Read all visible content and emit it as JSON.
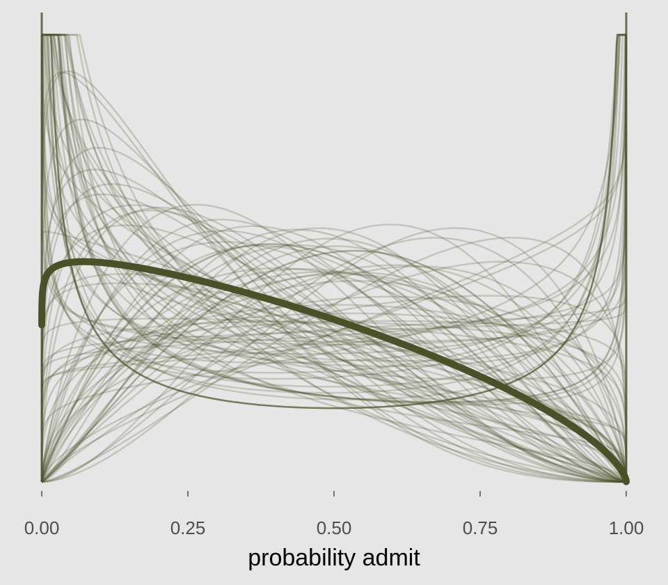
{
  "chart_data": {
    "type": "line",
    "title": "",
    "xlabel": "probability admit",
    "ylabel": "",
    "xlim": [
      0,
      1
    ],
    "x_ticks": [
      0,
      0.25,
      0.5,
      0.75,
      1
    ],
    "x_tick_labels": [
      "0.00",
      "0.25",
      "0.50",
      "0.75",
      "1.00"
    ],
    "y_axis_shown": false,
    "grid": false,
    "legend": "none",
    "background_color": "#e6e6e6",
    "line_color": "#4a5129",
    "series": [
      {
        "role": "mean beta density (thick line)",
        "distribution": "beta",
        "shape1": 1.05,
        "shape2": 1.65
      },
      {
        "role": "prior beta density draws (thin translucent lines)",
        "distribution": "beta",
        "count": 100
      }
    ]
  }
}
